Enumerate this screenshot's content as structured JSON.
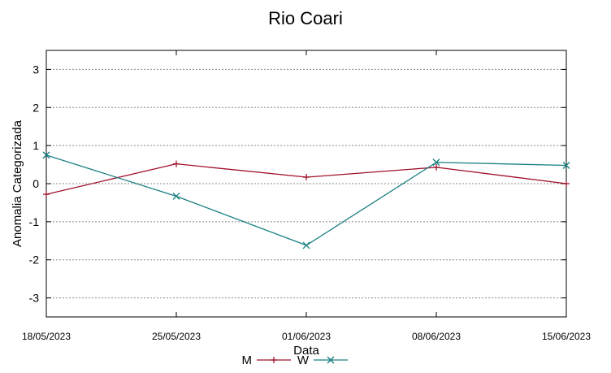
{
  "chart_data": {
    "type": "line",
    "title": "Rio Coari",
    "xlabel": "Data",
    "ylabel": "Anomalia Categorizada",
    "ylim": [
      -3.5,
      3.5
    ],
    "yticks": [
      -3,
      -2,
      -1,
      0,
      1,
      2,
      3
    ],
    "grid": true,
    "legend_position": "bottom",
    "categories": [
      "18/05/2023",
      "25/05/2023",
      "01/06/2023",
      "08/06/2023",
      "15/06/2023"
    ],
    "series": [
      {
        "name": "M",
        "color": "#a0102a",
        "marker": "plus",
        "values": [
          -0.28,
          0.52,
          0.17,
          0.43,
          0.0
        ]
      },
      {
        "name": "W",
        "color": "#1a7f80",
        "marker": "cross",
        "values": [
          0.75,
          -0.33,
          -1.62,
          0.56,
          0.48
        ]
      }
    ]
  }
}
